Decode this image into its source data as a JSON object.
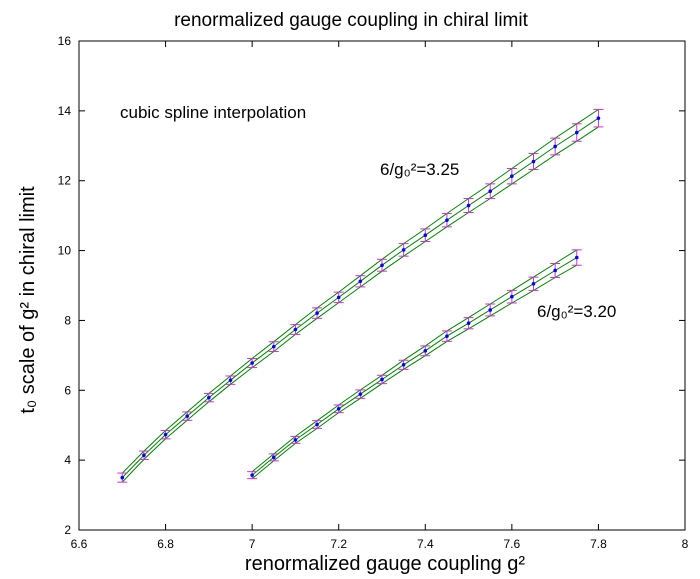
{
  "chart_data": {
    "type": "line",
    "title": "renormalized gauge coupling in chiral limit",
    "xlabel": "renormalized gauge coupling g²",
    "ylabel": "t₀ scale of g² in chiral limit",
    "xlim": [
      6.6,
      8.0
    ],
    "ylim": [
      2,
      16
    ],
    "xticks": [
      "6.6",
      "6.8",
      "7",
      "7.2",
      "7.4",
      "7.6",
      "7.8",
      "8"
    ],
    "yticks": [
      "2",
      "4",
      "6",
      "8",
      "10",
      "12",
      "14",
      "16"
    ],
    "grid": false,
    "annotations": {
      "method": "cubic spline interpolation",
      "label_325": "6/g₀²=3.25",
      "label_320": "6/g₀²=3.20"
    },
    "colors": {
      "curves": "#008000",
      "points": "#0000ff",
      "errorbars": "#cc33cc",
      "axes": "#000000"
    },
    "series": [
      {
        "label_key": "label_325",
        "x": [
          6.7,
          6.75,
          6.8,
          6.85,
          6.9,
          6.95,
          7.0,
          7.05,
          7.1,
          7.15,
          7.2,
          7.25,
          7.3,
          7.35,
          7.4,
          7.45,
          7.5,
          7.55,
          7.6,
          7.65,
          7.7,
          7.75,
          7.8
        ],
        "values": [
          3.5,
          4.14,
          4.73,
          5.26,
          5.79,
          6.29,
          6.78,
          7.25,
          7.74,
          8.21,
          8.66,
          9.12,
          9.58,
          10.02,
          10.44,
          10.87,
          11.29,
          11.7,
          12.13,
          12.55,
          12.98,
          13.38,
          13.79
        ],
        "errors": [
          0.13,
          0.12,
          0.12,
          0.12,
          0.12,
          0.12,
          0.13,
          0.14,
          0.14,
          0.15,
          0.15,
          0.16,
          0.17,
          0.18,
          0.18,
          0.19,
          0.2,
          0.21,
          0.22,
          0.23,
          0.24,
          0.25,
          0.25
        ]
      },
      {
        "label_key": "label_320",
        "x": [
          7.0,
          7.05,
          7.1,
          7.15,
          7.2,
          7.25,
          7.3,
          7.35,
          7.4,
          7.45,
          7.5,
          7.55,
          7.6,
          7.65,
          7.7,
          7.75
        ],
        "values": [
          3.57,
          4.08,
          4.58,
          5.02,
          5.47,
          5.89,
          6.31,
          6.73,
          7.13,
          7.55,
          7.92,
          8.3,
          8.68,
          9.05,
          9.43,
          9.8
        ],
        "errors": [
          0.1,
          0.1,
          0.1,
          0.11,
          0.11,
          0.12,
          0.12,
          0.13,
          0.14,
          0.15,
          0.16,
          0.17,
          0.18,
          0.19,
          0.2,
          0.22
        ]
      }
    ]
  }
}
